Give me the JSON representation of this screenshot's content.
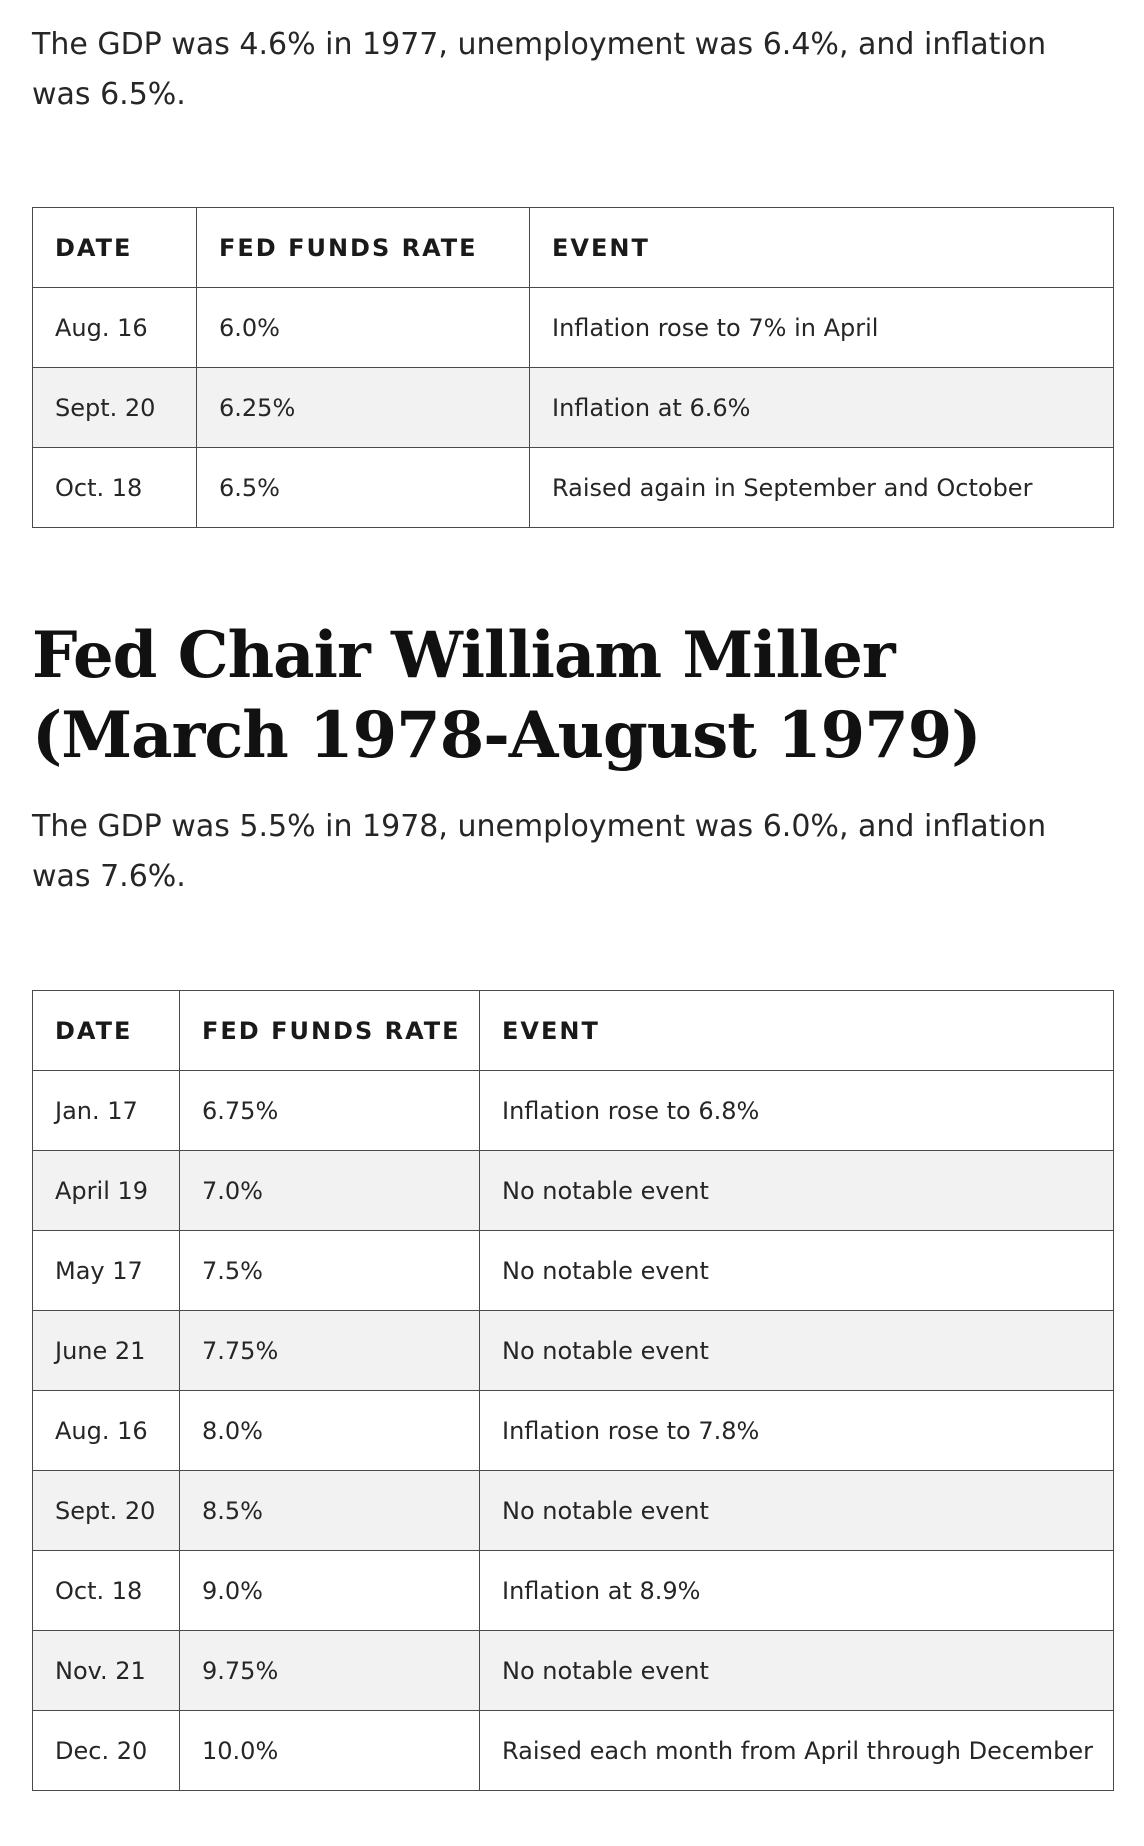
{
  "section_1977": {
    "summary": "The GDP was 4.6% in 1977, unemployment was 6.4%, and inflation was 6.5%.",
    "table": {
      "headers": [
        "DATE",
        "FED FUNDS RATE",
        "EVENT"
      ],
      "rows": [
        [
          "Aug. 16",
          "6.0%",
          "Inflation rose to 7% in April"
        ],
        [
          "Sept. 20",
          "6.25%",
          "Inflation at 6.6%"
        ],
        [
          "Oct. 18",
          "6.5%",
          "Raised again in September and October"
        ]
      ]
    }
  },
  "section_miller": {
    "heading": "Fed Chair William Miller (March 1978-August 1979)",
    "summary": "The GDP was 5.5% in 1978, unemployment was 6.0%, and inflation was 7.6%.",
    "table": {
      "headers": [
        "DATE",
        "FED FUNDS RATE",
        "EVENT"
      ],
      "rows": [
        [
          "Jan. 17",
          "6.75%",
          "Inflation rose to 6.8%"
        ],
        [
          "April 19",
          "7.0%",
          "No notable event"
        ],
        [
          "May 17",
          "7.5%",
          "No notable event"
        ],
        [
          "June 21",
          "7.75%",
          "No notable event"
        ],
        [
          "Aug. 16",
          "8.0%",
          "Inflation rose to 7.8%"
        ],
        [
          "Sept. 20",
          "8.5%",
          "No notable event"
        ],
        [
          "Oct. 18",
          "9.0%",
          "Inflation at 8.9%"
        ],
        [
          "Nov. 21",
          "9.75%",
          "No notable event"
        ],
        [
          "Dec. 20",
          "10.0%",
          "Raised each month from April through December"
        ]
      ]
    }
  },
  "colors": {
    "text": "#262626",
    "heading": "#111111",
    "border": "#4a4a4a",
    "stripe": "#f2f2f2"
  }
}
